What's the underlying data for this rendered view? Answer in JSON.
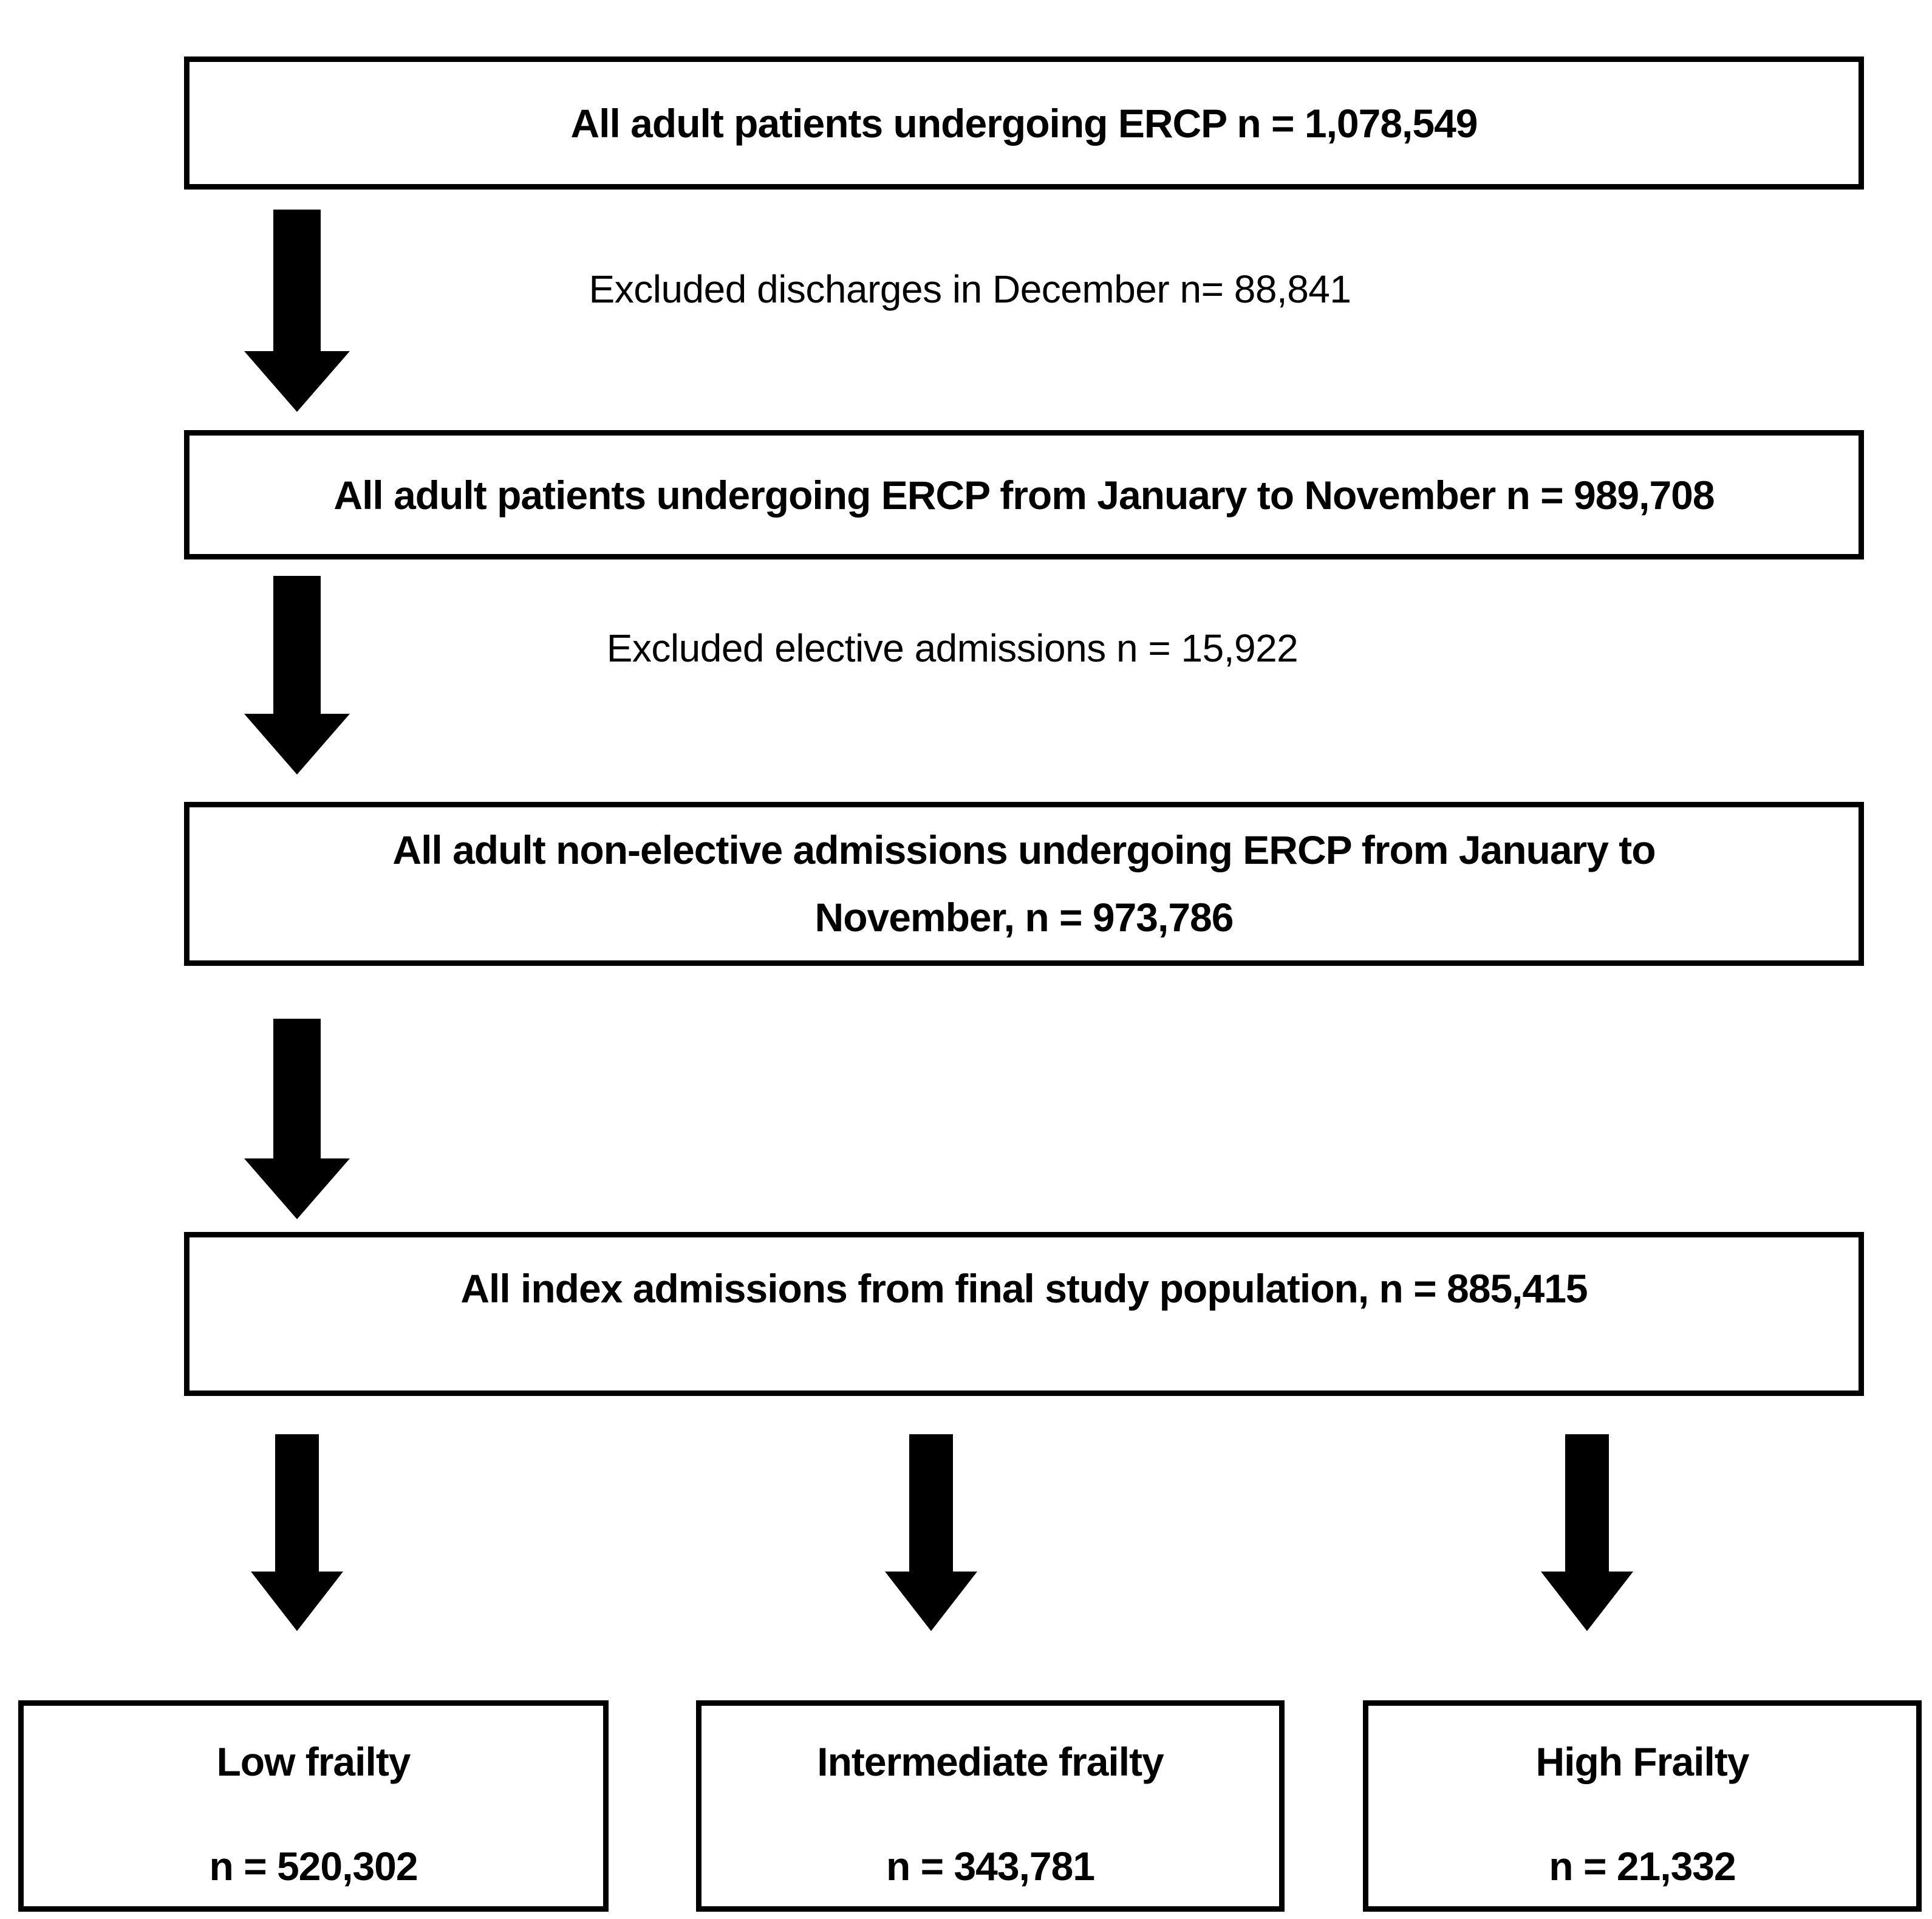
{
  "figure": {
    "background_color": "#ffffff",
    "ink_color": "#000000"
  },
  "flow": {
    "box1": {
      "text": "All adult patients undergoing ERCP n = 1,078,549"
    },
    "exclusion1": {
      "text": "Excluded discharges in December n= 88,841"
    },
    "box2": {
      "text": "All adult patients undergoing ERCP from January to November n = 989,708"
    },
    "exclusion2": {
      "text": "Excluded elective admissions n = 15,922"
    },
    "box3": {
      "line1": "All adult non-elective admissions undergoing ERCP from January to",
      "line2": "November, n = 973,786"
    },
    "box4": {
      "text": "All index admissions from final study population, n = 885,415"
    },
    "outcomes": [
      {
        "label": "Low frailty",
        "count": "n = 520,302"
      },
      {
        "label": "Intermediate frailty",
        "count": "n = 343,781"
      },
      {
        "label": "High Frailty",
        "count": "n = 21,332"
      }
    ]
  }
}
